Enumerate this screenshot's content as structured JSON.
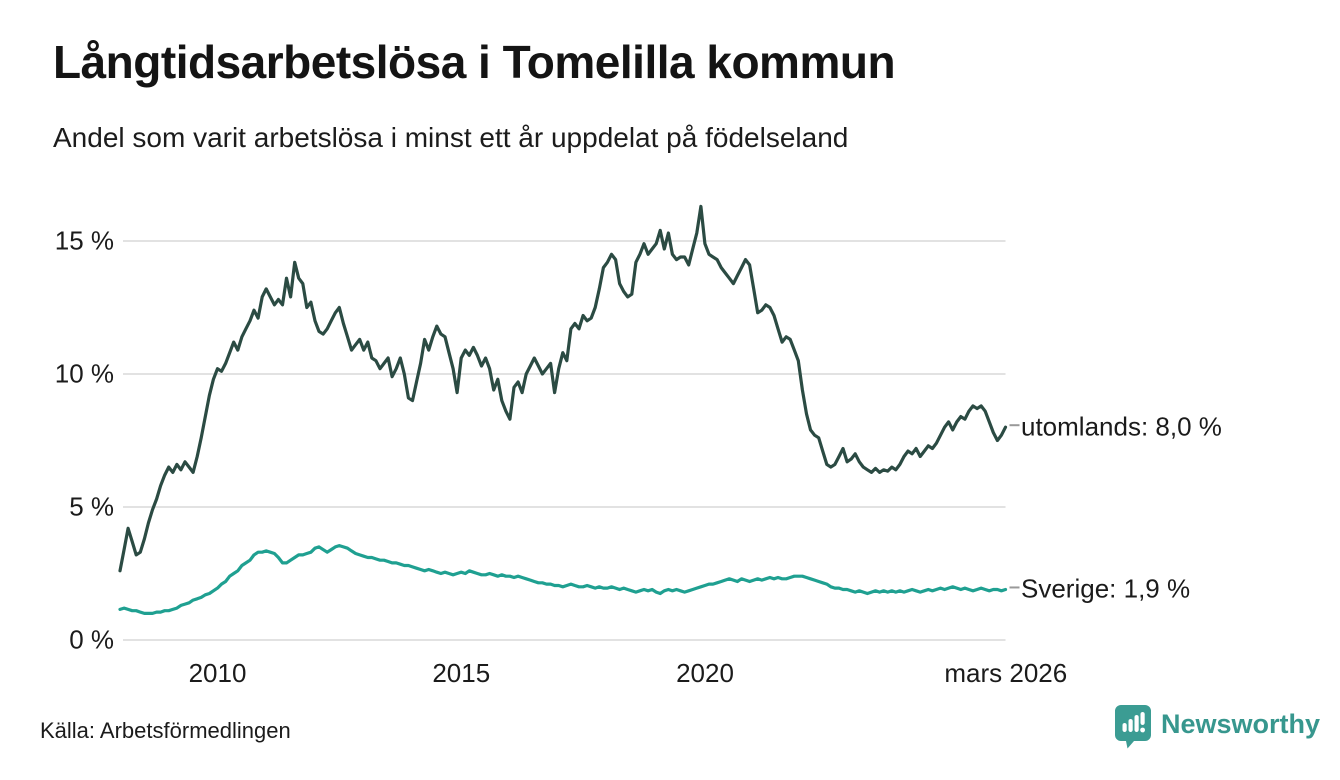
{
  "title": "Långtidsarbetslösa i Tomelilla kommun",
  "subtitle": "Andel som varit arbetslösa i minst ett år uppdelat på födelseland",
  "source": "Källa: Arbetsförmedlingen",
  "brand": {
    "name": "Newsworthy",
    "icon": "newsworthy-speech-bubble-bar-chart",
    "color": "#3b9c93"
  },
  "colors": {
    "utomlands_line": "#2b4b43",
    "sverige_line": "#1fa091",
    "gridline": "#e2e2e2",
    "tick_dash": "#999999",
    "text": "#1a1a1a"
  },
  "chart_data": {
    "type": "line",
    "title": "Långtidsarbetslösa i Tomelilla kommun",
    "subtitle": "Andel som varit arbetslösa i minst ett år uppdelat på födelseland",
    "x_unit": "month",
    "x_range": {
      "start": "2008-01",
      "end": "2026-03"
    },
    "x_ticks": [
      {
        "value": 2010,
        "label": "2010"
      },
      {
        "value": 2015,
        "label": "2015"
      },
      {
        "value": 2020,
        "label": "2020"
      },
      {
        "value": 2026.17,
        "label": "mars 2026"
      }
    ],
    "y_ticks": [
      {
        "value": 0,
        "label": "0 %"
      },
      {
        "value": 5,
        "label": "5 %"
      },
      {
        "value": 10,
        "label": "10 %"
      },
      {
        "value": 15,
        "label": "15 %"
      }
    ],
    "ylim": [
      0,
      16.8
    ],
    "grid": "horizontal",
    "legend_position": "right-end-labels",
    "series": [
      {
        "name": "utomlands",
        "end_label": "utomlands: 8,0 %",
        "last_value": 8.0,
        "color": "#2b4b43",
        "values": [
          2.6,
          3.4,
          4.2,
          3.7,
          3.2,
          3.3,
          3.8,
          4.4,
          4.9,
          5.3,
          5.8,
          6.2,
          6.5,
          6.3,
          6.6,
          6.4,
          6.7,
          6.5,
          6.3,
          6.9,
          7.6,
          8.4,
          9.2,
          9.8,
          10.2,
          10.1,
          10.4,
          10.8,
          11.2,
          10.9,
          11.4,
          11.7,
          12.0,
          12.4,
          12.1,
          12.9,
          13.2,
          12.9,
          12.6,
          12.8,
          12.6,
          13.6,
          12.9,
          14.2,
          13.6,
          13.4,
          12.5,
          12.7,
          12.0,
          11.6,
          11.5,
          11.7,
          12.0,
          12.3,
          12.5,
          11.9,
          11.4,
          10.9,
          11.1,
          11.3,
          10.9,
          11.2,
          10.6,
          10.5,
          10.2,
          10.4,
          10.6,
          9.9,
          10.2,
          10.6,
          10.0,
          9.1,
          9.0,
          9.7,
          10.4,
          11.3,
          10.9,
          11.4,
          11.8,
          11.5,
          11.4,
          10.8,
          10.2,
          9.3,
          10.6,
          10.9,
          10.7,
          11.0,
          10.7,
          10.3,
          10.6,
          10.2,
          9.4,
          9.8,
          9.0,
          8.6,
          8.3,
          9.5,
          9.7,
          9.3,
          10.0,
          10.3,
          10.6,
          10.3,
          10.0,
          10.2,
          10.4,
          9.3,
          10.2,
          10.8,
          10.5,
          11.7,
          11.9,
          11.7,
          12.2,
          12.0,
          12.1,
          12.5,
          13.2,
          14.0,
          14.2,
          14.5,
          14.3,
          13.4,
          13.1,
          12.9,
          13.0,
          14.2,
          14.5,
          14.9,
          14.5,
          14.7,
          14.9,
          15.4,
          14.7,
          15.3,
          14.5,
          14.3,
          14.4,
          14.4,
          14.1,
          14.7,
          15.3,
          16.3,
          14.9,
          14.5,
          14.4,
          14.3,
          14.0,
          13.8,
          13.6,
          13.4,
          13.7,
          14.0,
          14.3,
          14.1,
          13.2,
          12.3,
          12.4,
          12.6,
          12.5,
          12.2,
          11.7,
          11.2,
          11.4,
          11.3,
          10.9,
          10.5,
          9.4,
          8.5,
          7.9,
          7.7,
          7.6,
          7.1,
          6.6,
          6.5,
          6.6,
          6.9,
          7.2,
          6.7,
          6.8,
          7.0,
          6.7,
          6.5,
          6.4,
          6.3,
          6.45,
          6.3,
          6.4,
          6.35,
          6.5,
          6.4,
          6.6,
          6.9,
          7.1,
          7.0,
          7.2,
          6.9,
          7.1,
          7.3,
          7.2,
          7.4,
          7.7,
          8.0,
          8.2,
          7.9,
          8.2,
          8.4,
          8.3,
          8.6,
          8.8,
          8.7,
          8.8,
          8.6,
          8.2,
          7.8,
          7.5,
          7.7,
          8.0
        ]
      },
      {
        "name": "Sverige",
        "end_label": "Sverige: 1,9 %",
        "last_value": 1.9,
        "color": "#1fa091",
        "values": [
          1.15,
          1.2,
          1.15,
          1.1,
          1.1,
          1.05,
          1.0,
          1.0,
          1.0,
          1.05,
          1.05,
          1.1,
          1.1,
          1.15,
          1.2,
          1.3,
          1.35,
          1.4,
          1.5,
          1.55,
          1.6,
          1.7,
          1.75,
          1.85,
          1.95,
          2.1,
          2.2,
          2.4,
          2.5,
          2.6,
          2.8,
          2.9,
          3.0,
          3.2,
          3.3,
          3.3,
          3.35,
          3.3,
          3.25,
          3.1,
          2.9,
          2.9,
          3.0,
          3.1,
          3.2,
          3.2,
          3.25,
          3.3,
          3.45,
          3.5,
          3.4,
          3.3,
          3.4,
          3.5,
          3.55,
          3.5,
          3.45,
          3.35,
          3.25,
          3.2,
          3.15,
          3.1,
          3.1,
          3.05,
          3.0,
          3.0,
          2.95,
          2.9,
          2.9,
          2.85,
          2.8,
          2.8,
          2.75,
          2.7,
          2.65,
          2.6,
          2.65,
          2.6,
          2.55,
          2.5,
          2.55,
          2.5,
          2.45,
          2.5,
          2.55,
          2.5,
          2.6,
          2.55,
          2.5,
          2.45,
          2.45,
          2.5,
          2.45,
          2.4,
          2.45,
          2.4,
          2.4,
          2.35,
          2.4,
          2.35,
          2.3,
          2.25,
          2.2,
          2.15,
          2.15,
          2.1,
          2.1,
          2.05,
          2.05,
          2.0,
          2.05,
          2.1,
          2.05,
          2.0,
          2.0,
          2.05,
          2.0,
          1.95,
          2.0,
          1.95,
          1.95,
          2.0,
          1.95,
          1.9,
          1.95,
          1.9,
          1.85,
          1.8,
          1.85,
          1.9,
          1.85,
          1.9,
          1.8,
          1.75,
          1.85,
          1.9,
          1.85,
          1.9,
          1.85,
          1.8,
          1.85,
          1.9,
          1.95,
          2.0,
          2.05,
          2.1,
          2.1,
          2.15,
          2.2,
          2.25,
          2.3,
          2.25,
          2.2,
          2.3,
          2.25,
          2.2,
          2.25,
          2.3,
          2.25,
          2.3,
          2.35,
          2.3,
          2.35,
          2.3,
          2.3,
          2.35,
          2.4,
          2.4,
          2.4,
          2.35,
          2.3,
          2.25,
          2.2,
          2.15,
          2.1,
          2.0,
          1.95,
          1.95,
          1.9,
          1.9,
          1.85,
          1.8,
          1.85,
          1.8,
          1.75,
          1.8,
          1.85,
          1.8,
          1.85,
          1.8,
          1.85,
          1.8,
          1.85,
          1.8,
          1.85,
          1.9,
          1.85,
          1.8,
          1.85,
          1.9,
          1.85,
          1.9,
          1.95,
          1.9,
          1.95,
          2.0,
          1.95,
          1.9,
          1.95,
          1.9,
          1.85,
          1.9,
          1.95,
          1.9,
          1.85,
          1.9,
          1.9,
          1.85,
          1.9
        ]
      }
    ]
  }
}
